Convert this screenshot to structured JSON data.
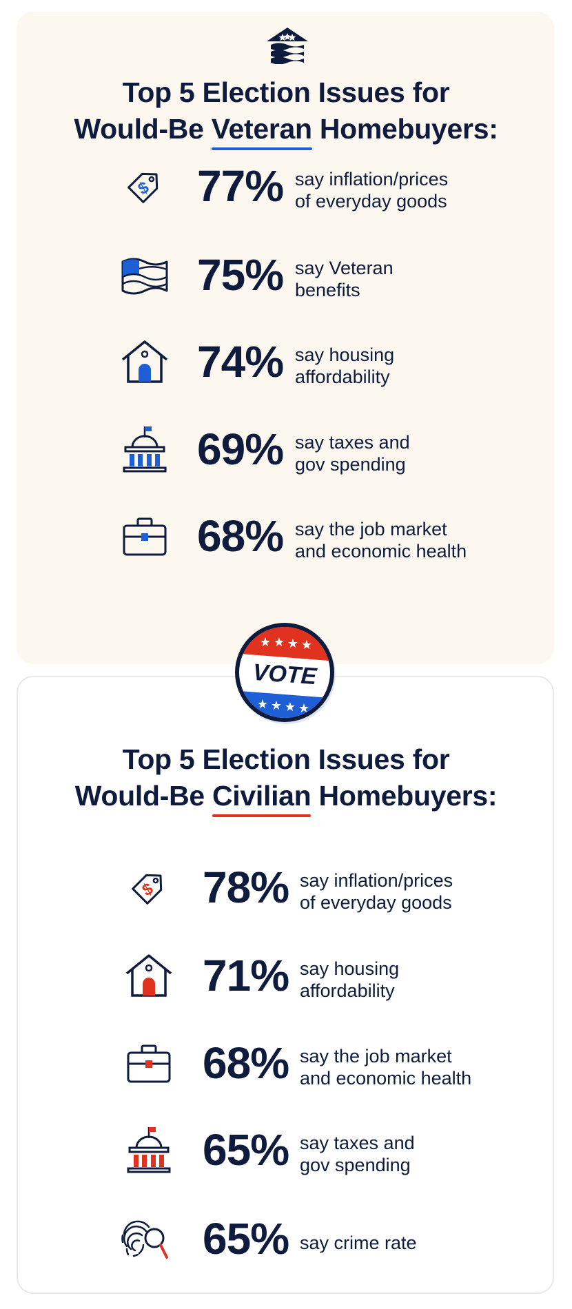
{
  "colors": {
    "navy": "#0e1b3d",
    "blue": "#1f5fd6",
    "red": "#e0321e",
    "cream": "#fcf8ef"
  },
  "veteran": {
    "title_line1": "Top 5 Election Issues for",
    "title_prefix": "Would-Be",
    "title_highlight": "Veteran",
    "title_suffix": "Homebuyers:",
    "items": [
      {
        "icon": "price-tag-icon",
        "percent": "77%",
        "line1": "say inflation/prices",
        "line2": "of everyday goods"
      },
      {
        "icon": "flag-icon",
        "percent": "75%",
        "line1": "say Veteran",
        "line2": "benefits"
      },
      {
        "icon": "house-icon",
        "percent": "74%",
        "line1": "say housing",
        "line2": "affordability"
      },
      {
        "icon": "capitol-icon",
        "percent": "69%",
        "line1": "say taxes and",
        "line2": "gov spending"
      },
      {
        "icon": "briefcase-icon",
        "percent": "68%",
        "line1": "say the job market",
        "line2": "and economic health"
      }
    ]
  },
  "badge": {
    "text": "VOTE"
  },
  "civilian": {
    "title_line1": "Top 5 Election Issues for",
    "title_prefix": "Would-Be",
    "title_highlight": "Civilian",
    "title_suffix": "Homebuyers:",
    "items": [
      {
        "icon": "price-tag-icon",
        "percent": "78%",
        "line1": "say inflation/prices",
        "line2": "of everyday goods"
      },
      {
        "icon": "house-icon",
        "percent": "71%",
        "line1": "say housing",
        "line2": "affordability"
      },
      {
        "icon": "briefcase-icon",
        "percent": "68%",
        "line1": "say the job market",
        "line2": "and economic health"
      },
      {
        "icon": "capitol-icon",
        "percent": "65%",
        "line1": "say taxes and",
        "line2": "gov spending"
      },
      {
        "icon": "fingerprint-magnifier-icon",
        "percent": "65%",
        "line1": "say crime rate",
        "line2": ""
      }
    ]
  }
}
